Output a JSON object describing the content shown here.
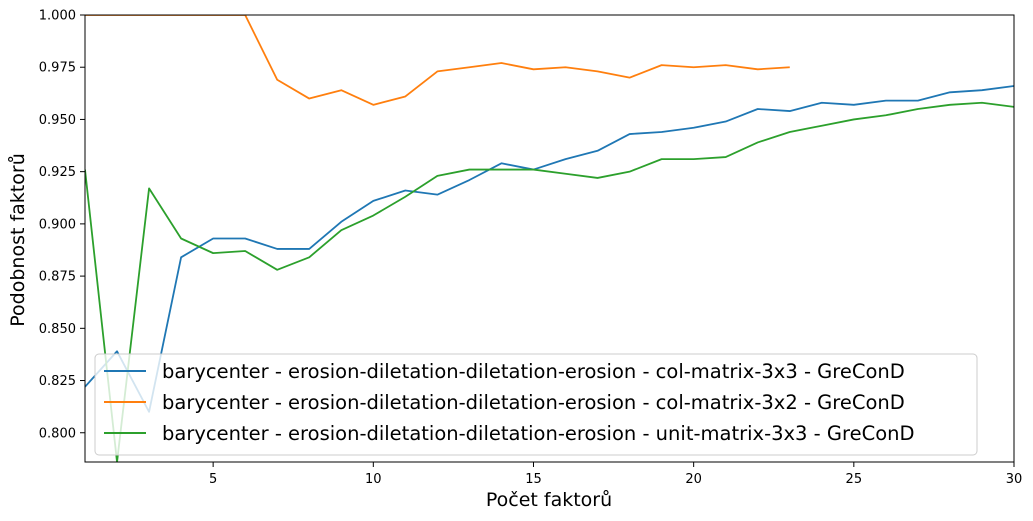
{
  "chart_data": {
    "type": "line",
    "title": "",
    "xlabel": "Počet faktorů",
    "ylabel": "Podobnost faktorů",
    "xlim": [
      1,
      30
    ],
    "ylim": [
      0.786,
      1.0
    ],
    "xticks": [
      5,
      10,
      15,
      20,
      25,
      30
    ],
    "yticks": [
      0.8,
      0.825,
      0.85,
      0.875,
      0.9,
      0.925,
      0.95,
      0.975,
      1.0
    ],
    "xtick_labels": [
      "5",
      "10",
      "15",
      "20",
      "25",
      "30"
    ],
    "ytick_labels": [
      "0.800",
      "0.825",
      "0.850",
      "0.875",
      "0.900",
      "0.925",
      "0.950",
      "0.975",
      "1.000"
    ],
    "grid": false,
    "legend_position": "lower-center",
    "series": [
      {
        "name": "barycenter - erosion-diletation-diletation-erosion - col-matrix-3x3 - GreConD",
        "color": "#1f77b4",
        "x": [
          1,
          2,
          3,
          4,
          5,
          6,
          7,
          8,
          9,
          10,
          11,
          12,
          13,
          14,
          15,
          16,
          17,
          18,
          19,
          20,
          21,
          22,
          23,
          24,
          25,
          26,
          27,
          28,
          29,
          30
        ],
        "values": [
          0.822,
          0.839,
          0.81,
          0.884,
          0.893,
          0.893,
          0.888,
          0.888,
          0.901,
          0.911,
          0.916,
          0.914,
          0.921,
          0.929,
          0.926,
          0.931,
          0.935,
          0.943,
          0.944,
          0.946,
          0.949,
          0.955,
          0.954,
          0.958,
          0.957,
          0.959,
          0.959,
          0.963,
          0.964,
          0.966
        ]
      },
      {
        "name": "barycenter - erosion-diletation-diletation-erosion - col-matrix-3x2 - GreConD",
        "color": "#ff7f0e",
        "x": [
          1,
          2,
          3,
          4,
          5,
          6,
          7,
          8,
          9,
          10,
          11,
          12,
          13,
          14,
          15,
          16,
          17,
          18,
          19,
          20,
          21,
          22,
          23
        ],
        "values": [
          1.0,
          1.0,
          1.0,
          1.0,
          1.0,
          1.0,
          0.969,
          0.96,
          0.964,
          0.957,
          0.961,
          0.973,
          0.975,
          0.977,
          0.974,
          0.975,
          0.973,
          0.97,
          0.976,
          0.975,
          0.976,
          0.974,
          0.975
        ]
      },
      {
        "name": "barycenter - erosion-diletation-diletation-erosion - unit-matrix-3x3 - GreConD",
        "color": "#2ca02c",
        "x": [
          1,
          2,
          3,
          4,
          5,
          6,
          7,
          8,
          9,
          10,
          11,
          12,
          13,
          14,
          15,
          16,
          17,
          18,
          19,
          20,
          21,
          22,
          23,
          24,
          25,
          26,
          27,
          28,
          29,
          30
        ],
        "values": [
          0.926,
          0.786,
          0.917,
          0.893,
          0.886,
          0.887,
          0.878,
          0.884,
          0.897,
          0.904,
          0.913,
          0.923,
          0.926,
          0.926,
          0.926,
          0.924,
          0.922,
          0.925,
          0.931,
          0.931,
          0.932,
          0.939,
          0.944,
          0.947,
          0.95,
          0.952,
          0.955,
          0.957,
          0.958,
          0.956
        ]
      }
    ]
  }
}
